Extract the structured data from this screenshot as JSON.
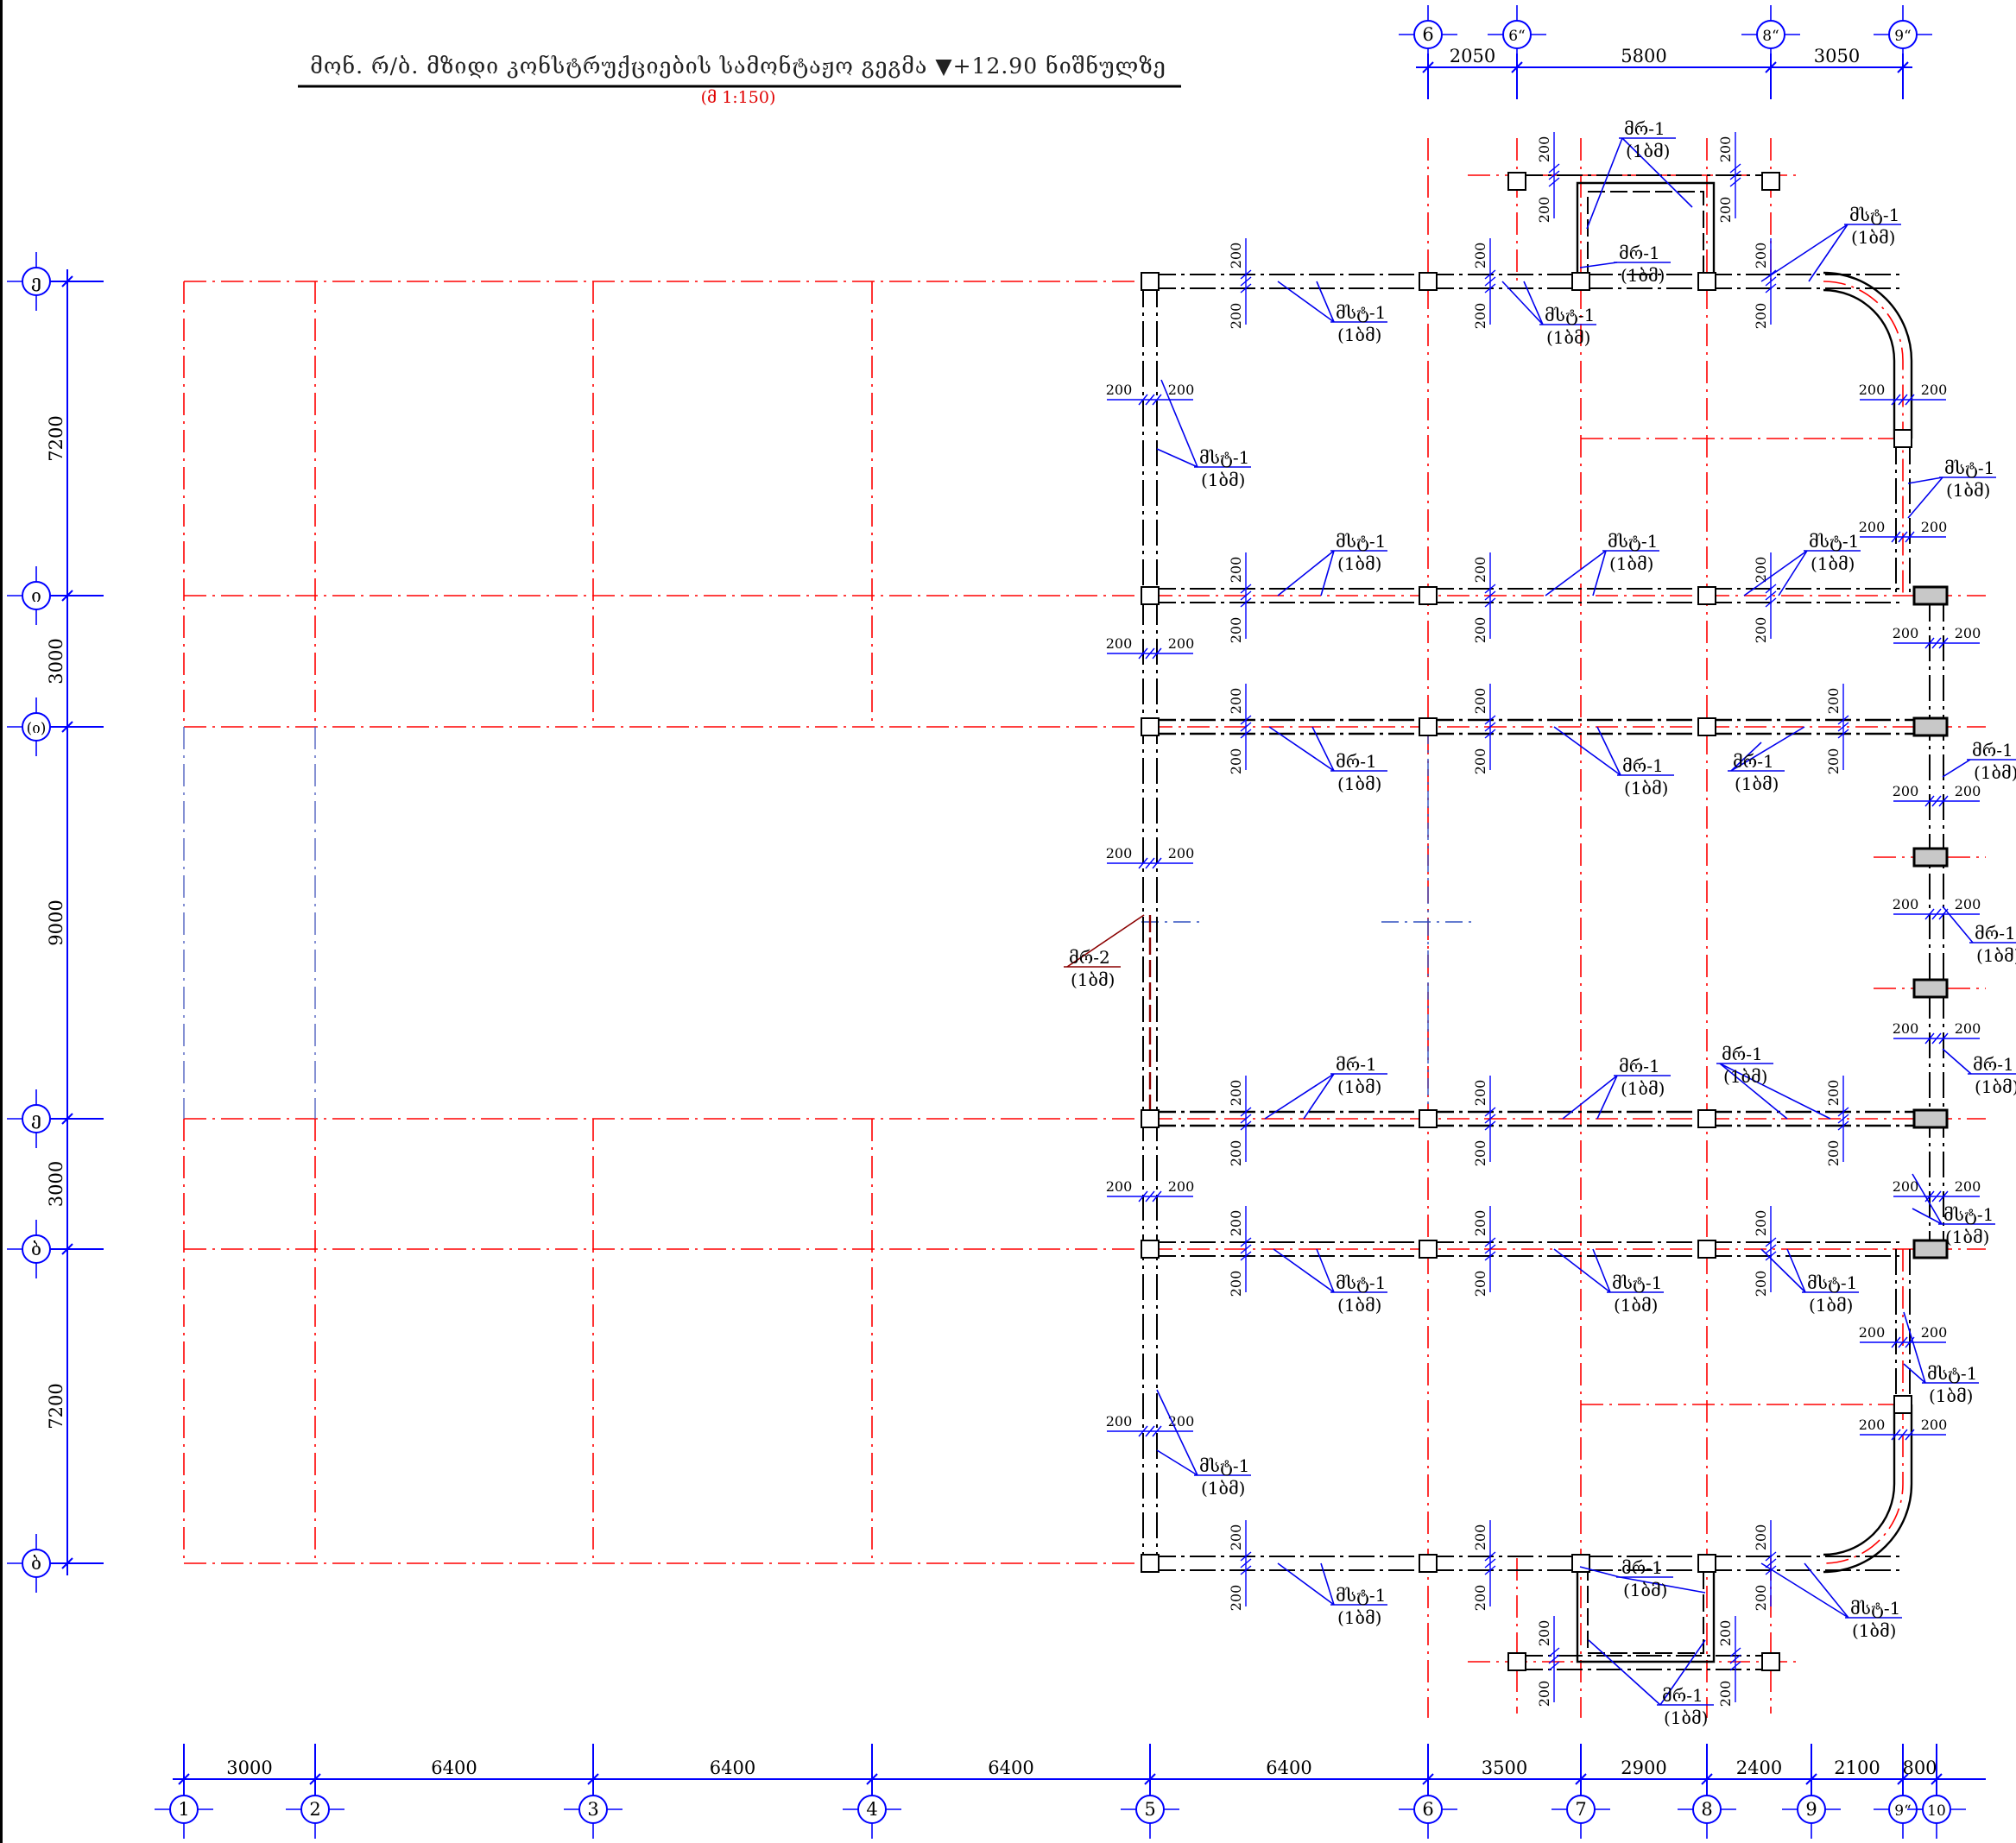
{
  "title": {
    "main": "მონ. რ/ბ. მზიდი კონსტრუქციების სამონტაჟო გეგმა ▼+12.90 ნიშნულზე",
    "scale": "(მ 1:150)"
  },
  "colors": {
    "background": "#ffffff",
    "dimension": "#0000ff",
    "grid": "#ff0000",
    "structure": "#000000",
    "leader": "#0000ee",
    "leader_beam2": "#8b0000"
  },
  "axes": {
    "bottom": [
      {
        "label": "1"
      },
      {
        "label": "2"
      },
      {
        "label": "3"
      },
      {
        "label": "4"
      },
      {
        "label": "5"
      },
      {
        "label": "6"
      },
      {
        "label": "7"
      },
      {
        "label": "8"
      },
      {
        "label": "9"
      },
      {
        "label": "9“"
      },
      {
        "label": "10"
      }
    ],
    "bottom_dims": [
      "3000",
      "6400",
      "6400",
      "6400",
      "6400",
      "3500",
      "2900",
      "2400",
      "2100",
      "800"
    ],
    "top": [
      {
        "label": "6"
      },
      {
        "label": "6“"
      },
      {
        "label": "8“"
      },
      {
        "label": "9“"
      }
    ],
    "top_dims": [
      "2050",
      "5800",
      "3050"
    ],
    "left": [
      {
        "label": "ე"
      },
      {
        "label": "ი"
      },
      {
        "label": "(ი)"
      },
      {
        "label": "ე"
      },
      {
        "label": "ბ"
      },
      {
        "label": "ბ"
      }
    ],
    "left_dims": [
      "7200",
      "3000",
      "9000",
      "3000",
      "7200"
    ]
  },
  "dim_small": "200",
  "callouts": {
    "mst1": {
      "code": "მსტ-1",
      "ref": "(1ბმ)"
    },
    "mr1": {
      "code": "მრ-1",
      "ref": "(1ბმ)"
    },
    "mr2": {
      "code": "მრ-2",
      "ref": "(1ბმ)"
    }
  }
}
